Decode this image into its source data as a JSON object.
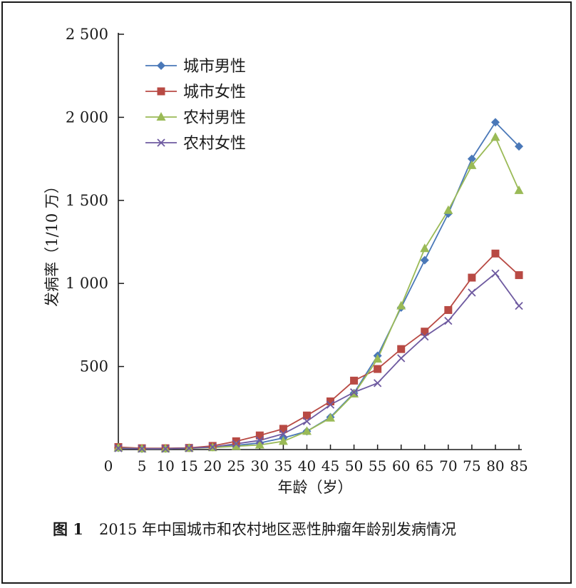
{
  "chart_data": {
    "type": "line",
    "title": "",
    "xlabel": "年龄（岁）",
    "ylabel": "发病率（1/10 万）",
    "xlim": [
      0,
      85
    ],
    "ylim": [
      0,
      2500
    ],
    "x_ticks": [
      0,
      5,
      10,
      15,
      20,
      25,
      30,
      35,
      40,
      45,
      50,
      55,
      60,
      65,
      70,
      75,
      80,
      85
    ],
    "x_tick_labels": [
      "0",
      "5",
      "10",
      "15",
      "20",
      "25",
      "30",
      "35",
      "40",
      "45",
      "50",
      "55",
      "60",
      "65",
      "70",
      "75",
      "80",
      "85"
    ],
    "y_ticks": [
      500,
      1000,
      1500,
      2000,
      2500
    ],
    "y_tick_labels": [
      "500",
      "1 000",
      "1 500",
      "2 000",
      "2 500"
    ],
    "x": [
      0,
      5,
      10,
      15,
      20,
      25,
      30,
      35,
      40,
      45,
      50,
      55,
      60,
      65,
      70,
      75,
      80,
      85
    ],
    "grid": false,
    "legend_position": "top-left",
    "series": [
      {
        "name": "城市男性",
        "color": "#4a78b8",
        "marker": "diamond",
        "values": [
          10,
          5,
          6,
          10,
          15,
          25,
          40,
          70,
          110,
          195,
          340,
          565,
          855,
          1140,
          1420,
          1750,
          1970,
          1825
        ]
      },
      {
        "name": "城市女性",
        "color": "#b84a44",
        "marker": "square",
        "values": [
          15,
          8,
          8,
          10,
          22,
          50,
          85,
          125,
          205,
          290,
          415,
          485,
          605,
          710,
          840,
          1035,
          1180,
          1050
        ]
      },
      {
        "name": "农村男性",
        "color": "#9aba56",
        "marker": "triangle",
        "values": [
          10,
          5,
          5,
          8,
          12,
          20,
          28,
          50,
          110,
          190,
          335,
          545,
          865,
          1210,
          1440,
          1710,
          1880,
          1560
        ]
      },
      {
        "name": "农村女性",
        "color": "#6e5aa0",
        "marker": "x",
        "values": [
          8,
          5,
          5,
          8,
          15,
          35,
          55,
          95,
          170,
          270,
          345,
          400,
          550,
          680,
          775,
          945,
          1060,
          865
        ]
      }
    ]
  },
  "caption": {
    "label": "图 1",
    "text": "2015 年中国城市和农村地区恶性肿瘤年龄别发病情况"
  }
}
